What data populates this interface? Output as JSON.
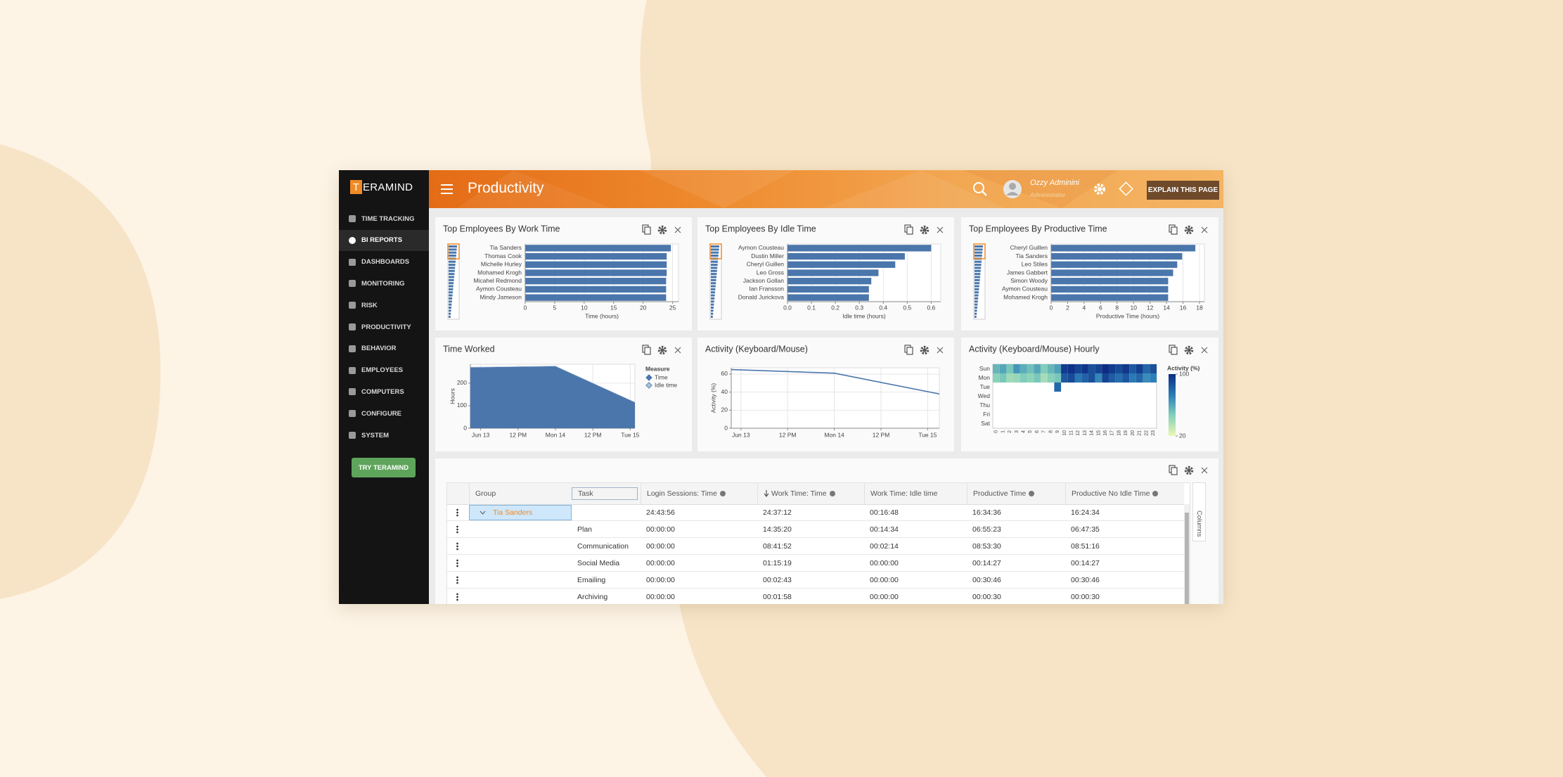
{
  "sidebar": {
    "logo_mark": "T",
    "logo_text": "ERAMIND",
    "menu": [
      "TIME TRACKING",
      "BI REPORTS",
      "DASHBOARDS",
      "MONITORING",
      "RISK",
      "PRODUCTIVITY",
      "BEHAVIOR",
      "EMPLOYEES",
      "COMPUTERS",
      "CONFIGURE",
      "SYSTEM"
    ],
    "active_item": 1,
    "button": "TRY TERAMIND"
  },
  "header": {
    "title": "Productivity",
    "user": "Ozzy Adminini",
    "role": "Administrator",
    "button": "EXPLAIN THIS PAGE"
  },
  "chart_data": [
    {
      "type": "bar",
      "title": "Top Employees By Work Time",
      "categories": [
        "Tia Sanders",
        "Thomas Cook",
        "Michelle Hurley",
        "Mohamed Krogh",
        "Micahel Redmond",
        "Aymon Cousteau",
        "Mindy Jameson"
      ],
      "values": [
        24.7,
        24,
        24,
        24,
        23.9,
        23.9,
        23.9
      ],
      "color": "#4a76ab",
      "xlim": [
        0,
        26
      ],
      "xticks": [
        0,
        5,
        10,
        15,
        20,
        25
      ],
      "xlabel": "Time (hours)",
      "grid": true
    },
    {
      "type": "bar",
      "title": "Top Employees By Idle Time",
      "categories": [
        "Aymon Cousteau",
        "Dustin Miller",
        "Cheryl Guillen",
        "Leo Gross",
        "Jackson Gollan",
        "Ian Fransson",
        "Donald Jurickova"
      ],
      "values": [
        0.6,
        0.49,
        0.45,
        0.38,
        0.35,
        0.34,
        0.34
      ],
      "color": "#4a76ab",
      "xlim": [
        0,
        0.64
      ],
      "xticks": [
        {
          "value": 0,
          "label": "0.0"
        },
        0.1,
        0.2,
        0.3,
        0.4,
        0.5,
        0.6
      ],
      "xlabel": "Idle time (hours)",
      "grid": true
    },
    {
      "type": "bar",
      "title": "Top Employees By Productive Time",
      "categories": [
        "Cheryl Guillen",
        "Tia Sanders",
        "Leo Stiles",
        "James Gabbert",
        "Simon Woody",
        "Aymon Cousteau",
        "Mohamed Krogh"
      ],
      "values": [
        17.5,
        15.9,
        15.3,
        14.8,
        14.2,
        14.2,
        14.2
      ],
      "color": "#4a76ab",
      "xlim": [
        0,
        18.6
      ],
      "xticks": [
        0,
        2,
        4,
        6,
        8,
        10,
        12,
        14,
        16,
        18
      ],
      "xlabel": "Productive Time (hours)",
      "grid": true
    },
    {
      "type": "area",
      "title": "Time Worked",
      "x": [
        -3.3,
        24,
        49.5
      ],
      "xlim": [
        -3.3,
        49.5
      ],
      "xticks": [
        {
          "value": 0,
          "label": "Jun 13"
        },
        {
          "value": 12,
          "label": "12 PM"
        },
        {
          "value": 24,
          "label": "Mon 14"
        },
        {
          "value": 36,
          "label": "12 PM"
        },
        {
          "value": 48,
          "label": "Tue 15"
        }
      ],
      "ylim": [
        0,
        284
      ],
      "yticks": [
        0,
        100,
        200
      ],
      "ylabel": "Hours",
      "grid": true,
      "stacked": true,
      "legend_title": "Measure",
      "series": [
        {
          "name": "Time",
          "color": "#4a76ab",
          "values": [
            270,
            275,
            115
          ]
        },
        {
          "name": "Idle time",
          "color": "#a9c0da",
          "values": [
            2,
            2,
            1
          ]
        }
      ]
    },
    {
      "type": "line",
      "title": "Activity (Keyboard/Mouse)",
      "x": [
        -2.5,
        24,
        51
      ],
      "xlim": [
        -2.5,
        51
      ],
      "xticks": [
        {
          "value": 0,
          "label": "Jun 13"
        },
        {
          "value": 12,
          "label": "12 PM"
        },
        {
          "value": 24,
          "label": "Mon 14"
        },
        {
          "value": 36,
          "label": "12 PM"
        },
        {
          "value": 48,
          "label": "Tue 15"
        }
      ],
      "ylim": [
        0,
        67
      ],
      "yticks": [
        0,
        20,
        40,
        60
      ],
      "ylabel": "Activity (%)",
      "grid": true,
      "values": [
        65,
        61,
        38
      ],
      "color": "#4a76ab"
    },
    {
      "type": "heatmap",
      "title": "Activity (Keyboard/Mouse) Hourly",
      "x": [
        0,
        1,
        2,
        3,
        4,
        5,
        6,
        7,
        8,
        9,
        10,
        11,
        12,
        13,
        14,
        15,
        16,
        17,
        18,
        19,
        20,
        21,
        22,
        23
      ],
      "y": [
        "Sun",
        "Mon",
        "Tue",
        "Wed",
        "Thu",
        "Fri",
        "Sat"
      ],
      "values": [
        [
          55,
          60,
          50,
          65,
          58,
          52,
          60,
          48,
          55,
          62,
          95,
          98,
          92,
          97,
          88,
          92,
          100,
          95,
          90,
          96,
          85,
          94,
          80,
          88
        ],
        [
          45,
          50,
          40,
          42,
          48,
          44,
          50,
          38,
          46,
          50,
          85,
          90,
          75,
          82,
          88,
          70,
          92,
          84,
          78,
          86,
          74,
          80,
          68,
          72
        ],
        [
          null,
          null,
          null,
          null,
          null,
          null,
          null,
          null,
          null,
          80,
          null,
          null,
          null,
          null,
          null,
          null,
          null,
          null,
          null,
          null,
          null,
          null,
          null,
          null
        ],
        [
          null,
          null,
          null,
          null,
          null,
          null,
          null,
          null,
          null,
          null,
          null,
          null,
          null,
          null,
          null,
          null,
          null,
          null,
          null,
          null,
          null,
          null,
          null,
          null
        ],
        [
          null,
          null,
          null,
          null,
          null,
          null,
          null,
          null,
          null,
          null,
          null,
          null,
          null,
          null,
          null,
          null,
          null,
          null,
          null,
          null,
          null,
          null,
          null,
          null
        ],
        [
          null,
          null,
          null,
          null,
          null,
          null,
          null,
          null,
          null,
          null,
          null,
          null,
          null,
          null,
          null,
          null,
          null,
          null,
          null,
          null,
          null,
          null,
          null,
          null
        ],
        [
          null,
          null,
          null,
          null,
          null,
          null,
          null,
          null,
          null,
          null,
          null,
          null,
          null,
          null,
          null,
          null,
          null,
          null,
          null,
          null,
          null,
          null,
          null,
          null
        ]
      ],
      "colorbar_title": "Activity (%)",
      "clim": [
        20,
        100
      ],
      "cticks": [
        20,
        100
      ]
    }
  ],
  "table": {
    "columns": [
      "Group",
      "Task",
      "Login Sessions: Time",
      "Work Time: Time",
      "Work Time: Idle time",
      "Productive Time",
      "Productive No Idle Time"
    ],
    "rows": [
      {
        "group": "Tia Sanders",
        "values": [
          "24:43:56",
          "24:37:12",
          "00:16:48",
          "16:34:36",
          "16:24:34"
        ]
      },
      {
        "task": "Plan",
        "values": [
          "00:00:00",
          "14:35:20",
          "00:14:34",
          "06:55:23",
          "06:47:35"
        ]
      },
      {
        "task": "Communication",
        "values": [
          "00:00:00",
          "08:41:52",
          "00:02:14",
          "08:53:30",
          "08:51:16"
        ]
      },
      {
        "task": "Social Media",
        "values": [
          "00:00:00",
          "01:15:19",
          "00:00:00",
          "00:14:27",
          "00:14:27"
        ]
      },
      {
        "task": "Emailing",
        "values": [
          "00:00:00",
          "00:02:43",
          "00:00:00",
          "00:30:46",
          "00:30:46"
        ]
      },
      {
        "task": "Archiving",
        "values": [
          "00:00:00",
          "00:01:58",
          "00:00:00",
          "00:00:30",
          "00:00:30"
        ]
      }
    ],
    "side_tab": "Columns"
  }
}
